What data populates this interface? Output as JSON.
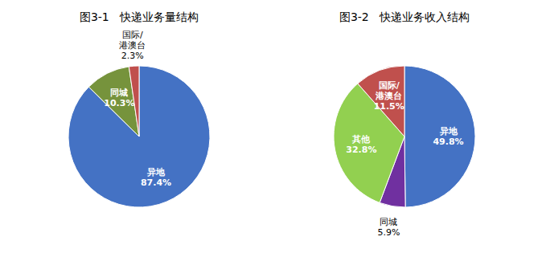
{
  "chart_data": [
    {
      "type": "pie",
      "title": "图3-1   快递业务量结构",
      "categories": [
        "异地",
        "同城",
        "国际/港澳台"
      ],
      "values": [
        87.4,
        10.3,
        2.3
      ],
      "value_labels": [
        "87.4%",
        "10.3%",
        "2.3%"
      ],
      "colors": [
        "#4472C4",
        "#76933C",
        "#C0504D"
      ],
      "data_labels": true
    },
    {
      "type": "pie",
      "title": "图3-2   快递业务收入结构",
      "categories": [
        "异地",
        "同城",
        "其他",
        "国际/港澳台"
      ],
      "values": [
        49.8,
        5.9,
        32.8,
        11.5
      ],
      "value_labels": [
        "49.8%",
        "5.9%",
        "32.8%",
        "11.5%"
      ],
      "colors": [
        "#4472C4",
        "#7030A0",
        "#92D050",
        "#C0504D"
      ],
      "data_labels": true
    }
  ]
}
